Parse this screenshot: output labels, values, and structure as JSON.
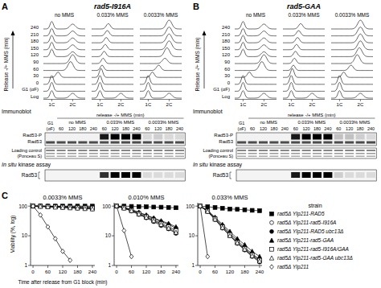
{
  "panels": [
    {
      "letter": "A",
      "title": "rad5-I916A",
      "facs": {
        "axis_label": "Release -/+ MMS (min)",
        "row_labels": [
          "Log",
          "G1 (αF)",
          "0",
          "30",
          "60",
          "90",
          "120",
          "150",
          "180",
          "210",
          "240"
        ],
        "x_labels": [
          {
            "value": 1,
            "label": "1C"
          },
          {
            "value": 2,
            "label": "2C"
          }
        ],
        "columns": [
          {
            "label": "no MMS",
            "rows": [
              [
                1,
                2
              ],
              [
                1
              ],
              [
                1
              ],
              [
                1.3
              ],
              [
                1.9
              ],
              [
                2
              ],
              [
                1,
                2
              ],
              [
                1,
                2
              ],
              [
                1,
                2
              ],
              [
                1,
                2
              ],
              [
                1,
                2
              ]
            ]
          },
          {
            "label": "0.033% MMS",
            "rows": [
              [
                1,
                2
              ],
              [
                1
              ],
              [
                1
              ],
              [
                1.05
              ],
              [
                1.1
              ],
              [
                1.15
              ],
              [
                1.2
              ],
              [
                1.25
              ],
              [
                1.3
              ],
              [
                1.35
              ],
              [
                1.4
              ]
            ]
          },
          {
            "label": "0.0033% MMS",
            "rows": [
              [
                1,
                2
              ],
              [
                1
              ],
              [
                1
              ],
              [
                1.2
              ],
              [
                1.5
              ],
              [
                1.8
              ],
              [
                1.9
              ],
              [
                2
              ],
              [
                2
              ],
              [
                2
              ],
              [
                2
              ]
            ]
          }
        ]
      },
      "immunoblot": {
        "title": "Immunoblot",
        "header": "release -/+ MMS (min)",
        "g1_label": "G1 (αF)",
        "groups": [
          {
            "label": "no MMS",
            "lanes": [
              60,
              120,
              180,
              240
            ]
          },
          {
            "label": "0.033% MMS",
            "lanes": [
              60,
              120,
              180,
              240
            ]
          },
          {
            "label": "0.0033% MMS",
            "lanes": [
              60,
              120,
              180,
              240
            ]
          }
        ],
        "rows": [
          "Rad53-P",
          "Rad53"
        ],
        "loading": "Loading control (Ponceau S)",
        "rad53p_signal": [
          0,
          0,
          0,
          0,
          0,
          0.9,
          1,
          1,
          1,
          0.1,
          0.15,
          0.1,
          0.1
        ],
        "kinase_title": "In situ kinase assay",
        "kinase_row": "Rad53",
        "kinase_signal": [
          0,
          0,
          0,
          0,
          0,
          0.8,
          1,
          1,
          1,
          0.1,
          0.1,
          0.1,
          0.1
        ]
      }
    },
    {
      "letter": "B",
      "title": "rad5-GAA",
      "facs": {
        "axis_label": "Release -/+ MMS (min)",
        "row_labels": [
          "Log",
          "G1 (αF)",
          "0",
          "30",
          "60",
          "90",
          "120",
          "150",
          "180",
          "210",
          "240"
        ],
        "x_labels": [
          {
            "value": 1,
            "label": "1C"
          },
          {
            "value": 2,
            "label": "2C"
          }
        ],
        "columns": [
          {
            "label": "no MMS",
            "rows": [
              [
                1,
                2
              ],
              [
                1
              ],
              [
                1
              ],
              [
                1.3
              ],
              [
                1.9
              ],
              [
                2
              ],
              [
                1,
                2
              ],
              [
                1,
                2
              ],
              [
                1,
                2
              ],
              [
                1,
                2
              ],
              [
                1,
                2
              ]
            ]
          },
          {
            "label": "0.033% MMS",
            "rows": [
              [
                1,
                2
              ],
              [
                1
              ],
              [
                1
              ],
              [
                1.05
              ],
              [
                1.1
              ],
              [
                1.15
              ],
              [
                1.2
              ],
              [
                1.25
              ],
              [
                1.3
              ],
              [
                1.35
              ],
              [
                1.45
              ]
            ]
          },
          {
            "label": "0.0033% MMS",
            "rows": [
              [
                1,
                2
              ],
              [
                1
              ],
              [
                1
              ],
              [
                1.2
              ],
              [
                1.55
              ],
              [
                1.85
              ],
              [
                1.95
              ],
              [
                2
              ],
              [
                2
              ],
              [
                2
              ],
              [
                2
              ]
            ]
          }
        ]
      },
      "immunoblot": {
        "title": "Immunoblot",
        "header": "release -/+ MMS (min)",
        "g1_label": "G1 (αF)",
        "groups": [
          {
            "label": "no MMS",
            "lanes": [
              60,
              120,
              180,
              240
            ]
          },
          {
            "label": "0.033% MMS",
            "lanes": [
              60,
              120,
              180,
              240
            ]
          },
          {
            "label": "0.0033% MMS",
            "lanes": [
              60,
              120,
              180,
              240
            ]
          }
        ],
        "rows": [
          "Rad53-P",
          "Rad53"
        ],
        "loading": "Loading control (Ponceau S)",
        "rad53p_signal": [
          0,
          0,
          0,
          0,
          0,
          0.9,
          1,
          1,
          1,
          0.2,
          0.2,
          0.15,
          0.1
        ],
        "kinase_title": "In situ kinase assay",
        "kinase_row": "Rad53",
        "kinase_signal": [
          0,
          0,
          0,
          0,
          0,
          0.9,
          1,
          1,
          1,
          0.15,
          0.1,
          0.1,
          0.1
        ]
      }
    }
  ],
  "panel_c_letter": "C",
  "legend_title": "strain",
  "chart_data": [
    {
      "type": "line",
      "title": "0.0033% MMS",
      "xlabel": "Time after release from G1 block (min)",
      "ylabel": "Viability (%, log)",
      "x": [
        0,
        30,
        60,
        90,
        120,
        150,
        180,
        210,
        240
      ],
      "xlim": [
        -10,
        250
      ],
      "xticks": [
        0,
        60,
        120,
        180,
        240
      ],
      "ylim": [
        1,
        130
      ],
      "yticks": [
        1,
        10,
        100
      ],
      "log": "y",
      "series": [
        {
          "color": "#000000",
          "marker": "square",
          "values": [
            100,
            100,
            100,
            100,
            100,
            100,
            100,
            100,
            100
          ]
        },
        {
          "color": "#000000",
          "marker": "open-circle",
          "values": [
            100,
            100,
            98,
            97,
            95,
            95,
            93,
            92,
            90
          ]
        },
        {
          "color": "#000000",
          "marker": "circle",
          "values": [
            100,
            98,
            95,
            93,
            90,
            88,
            85,
            83,
            80
          ]
        },
        {
          "color": "#000000",
          "marker": "triangle",
          "values": [
            100,
            100,
            99,
            98,
            97,
            96,
            95,
            94,
            93
          ]
        },
        {
          "color": "#000000",
          "marker": "open-square",
          "values": [
            100,
            99,
            97,
            95,
            93,
            92,
            90,
            88,
            86
          ]
        },
        {
          "color": "#000000",
          "marker": "open-triangle",
          "values": [
            100,
            98,
            95,
            92,
            90,
            87,
            85,
            82,
            80
          ]
        },
        {
          "color": "#000000",
          "marker": "open-diamond",
          "values": [
            100,
            50,
            20,
            8,
            3,
            1.5,
            null,
            null,
            null
          ]
        }
      ]
    },
    {
      "type": "line",
      "title": "0.010% MMS",
      "x": [
        0,
        30,
        60,
        90,
        120,
        150,
        180,
        210,
        240
      ],
      "xlim": [
        -10,
        250
      ],
      "xticks": [
        0,
        60,
        120,
        180,
        240
      ],
      "ylim": [
        1,
        130
      ],
      "yticks": [
        1,
        10,
        100
      ],
      "log": "y",
      "series": [
        {
          "color": "#000000",
          "marker": "square",
          "values": [
            100,
            100,
            98,
            96,
            95,
            93,
            92,
            90,
            88
          ]
        },
        {
          "color": "#000000",
          "marker": "open-circle",
          "values": [
            100,
            90,
            75,
            60,
            48,
            38,
            30,
            24,
            18
          ]
        },
        {
          "color": "#000000",
          "marker": "circle",
          "values": [
            100,
            85,
            68,
            52,
            40,
            30,
            22,
            17,
            12
          ]
        },
        {
          "color": "#000000",
          "marker": "triangle",
          "values": [
            100,
            90,
            76,
            62,
            50,
            40,
            32,
            26,
            20
          ]
        },
        {
          "color": "#000000",
          "marker": "open-square",
          "values": [
            100,
            88,
            72,
            56,
            44,
            34,
            26,
            20,
            15
          ]
        },
        {
          "color": "#000000",
          "marker": "open-triangle",
          "values": [
            100,
            85,
            70,
            54,
            42,
            32,
            24,
            18,
            13
          ]
        },
        {
          "color": "#000000",
          "marker": "open-diamond",
          "values": [
            100,
            15,
            2,
            null,
            null,
            null,
            null,
            null,
            null
          ]
        }
      ]
    },
    {
      "type": "line",
      "title": "0.033% MMS",
      "legend": "right",
      "x": [
        0,
        30,
        60,
        90,
        120,
        150,
        180,
        210,
        240
      ],
      "xlim": [
        -10,
        250
      ],
      "xticks": [
        0,
        60,
        120,
        180,
        240
      ],
      "ylim": [
        1,
        130
      ],
      "yticks": [
        1,
        10,
        100
      ],
      "log": "y",
      "series": [
        {
          "name": "rad5Δ YIp211-RAD5",
          "color": "#000000",
          "marker": "square",
          "values": [
            100,
            95,
            90,
            85,
            80,
            78,
            75,
            72,
            70
          ]
        },
        {
          "name": "rad5Δ YIp211-rad5-I916A",
          "color": "#000000",
          "marker": "open-circle",
          "values": [
            100,
            70,
            40,
            22,
            12,
            7,
            4,
            2.5,
            1.6
          ]
        },
        {
          "name": "rad5Δ YIp211-RAD5 ubc13Δ",
          "color": "#000000",
          "marker": "circle",
          "values": [
            100,
            65,
            35,
            18,
            10,
            5.5,
            3.3,
            2,
            1.3
          ]
        },
        {
          "name": "rad5Δ YIp211-rad5-GAA",
          "color": "#000000",
          "marker": "triangle",
          "values": [
            100,
            72,
            42,
            24,
            14,
            8,
            5,
            3,
            2
          ]
        },
        {
          "name": "rad5Δ YIp211-rad5-I916A/GAA",
          "color": "#000000",
          "marker": "open-square",
          "values": [
            100,
            68,
            38,
            20,
            11,
            6,
            3.7,
            2.3,
            1.5
          ]
        },
        {
          "name": "rad5Δ YIp211-rad5-GAA ubc13Δ",
          "color": "#000000",
          "marker": "open-triangle",
          "values": [
            100,
            66,
            36,
            19,
            10,
            5.8,
            3.5,
            2.1,
            1.4
          ]
        },
        {
          "name": "rad5Δ YIp211",
          "color": "#000000",
          "marker": "open-diamond",
          "values": [
            100,
            2,
            null,
            null,
            null,
            null,
            null,
            null,
            null
          ]
        }
      ]
    }
  ]
}
